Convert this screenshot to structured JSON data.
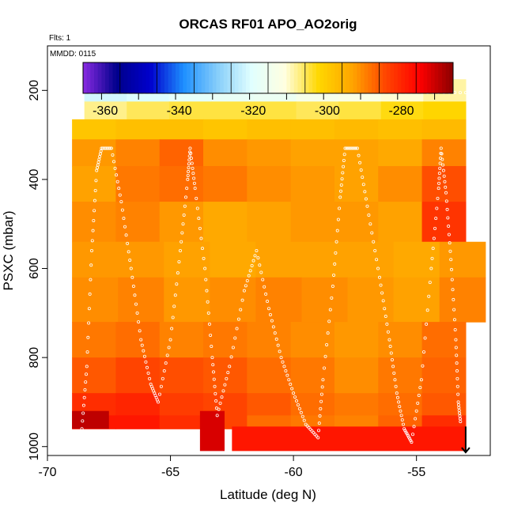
{
  "chart_data": {
    "type": "heatmap",
    "title": "ORCAS RF01 APO_AO2orig",
    "flights_label": "Flts: 1",
    "date_label": "MMDD: 0115",
    "xlabel": "Latitude (deg N)",
    "ylabel": "PSXC (mbar)",
    "xlim": [
      -70,
      -52
    ],
    "ylim": [
      1020,
      100
    ],
    "x_ticks": [
      -70,
      -65,
      -60,
      -55
    ],
    "x_tick_labels": [
      "-70",
      "-65",
      "-60",
      "-55"
    ],
    "y_ticks": [
      200,
      400,
      600,
      800,
      1000
    ],
    "y_tick_labels": [
      "200",
      "400",
      "600",
      "800",
      "1000"
    ],
    "colorbar": {
      "min": -366,
      "max": -266,
      "ticks": [
        -360,
        -340,
        -320,
        -300,
        -280
      ],
      "tick_labels": [
        "-360",
        "-340",
        "-320",
        "-300",
        "-280"
      ],
      "colors": [
        "#8a2be2",
        "#00008b",
        "#0000cd",
        "#1e90ff",
        "#87cefa",
        "#e0ffff",
        "#ffffe0",
        "#ffd700",
        "#ffa500",
        "#ff4500",
        "#ff0000",
        "#8b0000"
      ]
    },
    "layers": [
      {
        "p_top": 175,
        "p_bot": 225,
        "lat_min": -68.5,
        "lat_max": -53.0,
        "values": [
          -322,
          -321,
          -319,
          -318,
          -317,
          -314,
          -313,
          -311,
          -309
        ]
      },
      {
        "p_top": 225,
        "p_bot": 265,
        "lat_min": -68.5,
        "lat_max": -53.0,
        "values": [
          -308,
          -306,
          -305,
          -305,
          -305,
          -306,
          -305,
          -303,
          -302
        ]
      },
      {
        "p_top": 265,
        "p_bot": 310,
        "lat_min": -69.0,
        "lat_max": -53.0,
        "values": [
          -299,
          -298,
          -298,
          -299,
          -298,
          -298,
          -297,
          -298,
          -297
        ]
      },
      {
        "p_top": 310,
        "p_bot": 370,
        "lat_min": -69.0,
        "lat_max": -53.0,
        "values": [
          -292,
          -290,
          -287,
          -291,
          -292,
          -293,
          -293,
          -294,
          -290
        ]
      },
      {
        "p_top": 370,
        "p_bot": 450,
        "lat_min": -69.0,
        "lat_max": -53.0,
        "values": [
          -293,
          -289,
          -288,
          -289,
          -291,
          -292,
          -293,
          -291,
          -285
        ]
      },
      {
        "p_top": 450,
        "p_bot": 540,
        "lat_min": -69.0,
        "lat_max": -53.0,
        "values": [
          -291,
          -290,
          -292,
          -294,
          -293,
          -292,
          -292,
          -293,
          -282
        ]
      },
      {
        "p_top": 540,
        "p_bot": 620,
        "lat_min": -69.0,
        "lat_max": -52.2,
        "values": [
          -292,
          -292,
          -293,
          -294,
          -293,
          -293,
          -293,
          -294,
          -292
        ]
      },
      {
        "p_top": 620,
        "p_bot": 720,
        "lat_min": -69.0,
        "lat_max": -52.2,
        "values": [
          -291,
          -290,
          -292,
          -291,
          -290,
          -291,
          -292,
          -293,
          -290
        ]
      },
      {
        "p_top": 720,
        "p_bot": 800,
        "lat_min": -69.0,
        "lat_max": -53.0,
        "values": [
          -289,
          -288,
          -290,
          -289,
          -290,
          -291,
          -292,
          -291,
          -288
        ]
      },
      {
        "p_top": 800,
        "p_bot": 880,
        "lat_min": -69.0,
        "lat_max": -53.0,
        "values": [
          -286,
          -284,
          -285,
          -286,
          -288,
          -289,
          -291,
          -289,
          -287
        ]
      },
      {
        "p_top": 880,
        "p_bot": 930,
        "lat_min": -69.0,
        "lat_max": -53.0,
        "values": [
          -281,
          -280,
          -283,
          -284,
          -286,
          -288,
          -289,
          -288,
          -286
        ]
      },
      {
        "p_top": 930,
        "p_bot": 960,
        "lat_min": -69.0,
        "lat_max": -53.0,
        "values": [
          -278,
          -278,
          -281,
          -284,
          -288,
          -289,
          -290,
          -287,
          -281
        ]
      }
    ],
    "surface_patches": [
      {
        "lat_min": -69.0,
        "lat_max": -67.5,
        "p_top": 920,
        "p_bot": 960,
        "value": -270
      },
      {
        "lat_min": -63.8,
        "lat_max": -62.8,
        "p_top": 920,
        "p_bot": 1010,
        "value": -272
      },
      {
        "lat_min": -62.5,
        "lat_max": -53.0,
        "p_top": 955,
        "p_bot": 1010,
        "value": -278
      }
    ],
    "flight_track": [
      [
        -68.6,
        960
      ],
      [
        -68.4,
        820
      ],
      [
        -68.2,
        560
      ],
      [
        -68.0,
        380
      ],
      [
        -67.8,
        330
      ],
      [
        -67.4,
        330
      ],
      [
        -67.0,
        450
      ],
      [
        -66.6,
        600
      ],
      [
        -66.2,
        760
      ],
      [
        -65.8,
        860
      ],
      [
        -65.5,
        900
      ],
      [
        -65.0,
        760
      ],
      [
        -64.6,
        560
      ],
      [
        -64.3,
        400
      ],
      [
        -64.2,
        330
      ],
      [
        -64.0,
        420
      ],
      [
        -63.6,
        600
      ],
      [
        -63.3,
        800
      ],
      [
        -63.1,
        930
      ],
      [
        -62.6,
        820
      ],
      [
        -62.0,
        650
      ],
      [
        -61.5,
        560
      ],
      [
        -61.0,
        690
      ],
      [
        -60.5,
        800
      ],
      [
        -60.0,
        880
      ],
      [
        -59.5,
        950
      ],
      [
        -59.0,
        980
      ],
      [
        -58.8,
        850
      ],
      [
        -58.4,
        640
      ],
      [
        -58.1,
        440
      ],
      [
        -57.9,
        330
      ],
      [
        -57.4,
        330
      ],
      [
        -57.0,
        460
      ],
      [
        -56.5,
        620
      ],
      [
        -56.1,
        760
      ],
      [
        -55.8,
        880
      ],
      [
        -55.5,
        960
      ],
      [
        -55.2,
        990
      ],
      [
        -54.8,
        850
      ],
      [
        -54.4,
        600
      ],
      [
        -54.1,
        420
      ],
      [
        -54.0,
        330
      ],
      [
        -53.8,
        430
      ],
      [
        -53.6,
        580
      ],
      [
        -53.4,
        760
      ],
      [
        -53.3,
        900
      ],
      [
        -53.2,
        950
      ]
    ],
    "track_200mb": [
      -68.5,
      -53.0
    ]
  }
}
